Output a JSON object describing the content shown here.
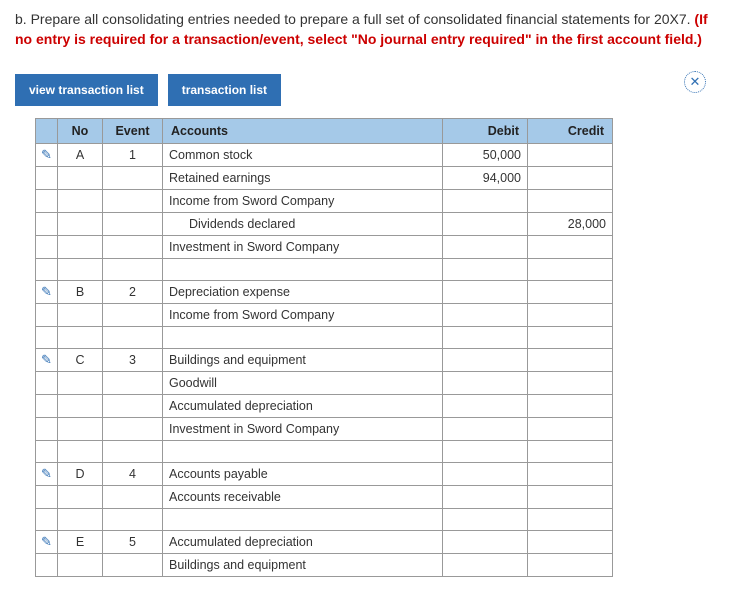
{
  "instruction": {
    "prefix": "b. Prepare all consolidating entries needed to prepare a full set of consolidated financial statements for 20X7. ",
    "redText": "(If no entry is required for a transaction/event, select \"No journal entry required\" in the first account field.)"
  },
  "buttons": {
    "viewList": "view transaction list",
    "transList": "transaction list"
  },
  "headers": {
    "no": "No",
    "event": "Event",
    "accounts": "Accounts",
    "debit": "Debit",
    "credit": "Credit"
  },
  "rows": [
    {
      "edit": true,
      "no": "A",
      "event": "1",
      "account": "Common stock",
      "debit": "50,000",
      "credit": ""
    },
    {
      "edit": false,
      "no": "",
      "event": "",
      "account": "Retained earnings",
      "debit": "94,000",
      "credit": ""
    },
    {
      "edit": false,
      "no": "",
      "event": "",
      "account": "Income from Sword Company",
      "debit": "",
      "credit": ""
    },
    {
      "edit": false,
      "no": "",
      "event": "",
      "account": "Dividends declared",
      "indent": true,
      "debit": "",
      "credit": "28,000"
    },
    {
      "edit": false,
      "no": "",
      "event": "",
      "account": "Investment in Sword Company",
      "debit": "",
      "credit": ""
    },
    {
      "edit": false,
      "no": "",
      "event": "",
      "account": "",
      "debit": "",
      "credit": ""
    },
    {
      "edit": true,
      "no": "B",
      "event": "2",
      "account": "Depreciation expense",
      "debit": "",
      "credit": ""
    },
    {
      "edit": false,
      "no": "",
      "event": "",
      "account": "Income from Sword Company",
      "debit": "",
      "credit": ""
    },
    {
      "edit": false,
      "no": "",
      "event": "",
      "account": "",
      "debit": "",
      "credit": ""
    },
    {
      "edit": true,
      "no": "C",
      "event": "3",
      "account": "Buildings and equipment",
      "debit": "",
      "credit": ""
    },
    {
      "edit": false,
      "no": "",
      "event": "",
      "account": "Goodwill",
      "debit": "",
      "credit": ""
    },
    {
      "edit": false,
      "no": "",
      "event": "",
      "account": "Accumulated depreciation",
      "debit": "",
      "credit": ""
    },
    {
      "edit": false,
      "no": "",
      "event": "",
      "account": "Investment in Sword Company",
      "debit": "",
      "credit": ""
    },
    {
      "edit": false,
      "no": "",
      "event": "",
      "account": "",
      "debit": "",
      "credit": ""
    },
    {
      "edit": true,
      "no": "D",
      "event": "4",
      "account": "Accounts payable",
      "debit": "",
      "credit": ""
    },
    {
      "edit": false,
      "no": "",
      "event": "",
      "account": "Accounts receivable",
      "debit": "",
      "credit": ""
    },
    {
      "edit": false,
      "no": "",
      "event": "",
      "account": "",
      "debit": "",
      "credit": ""
    },
    {
      "edit": true,
      "no": "E",
      "event": "5",
      "account": "Accumulated depreciation",
      "debit": "",
      "credit": ""
    },
    {
      "edit": false,
      "no": "",
      "event": "",
      "account": "Buildings and equipment",
      "debit": "",
      "credit": ""
    }
  ]
}
